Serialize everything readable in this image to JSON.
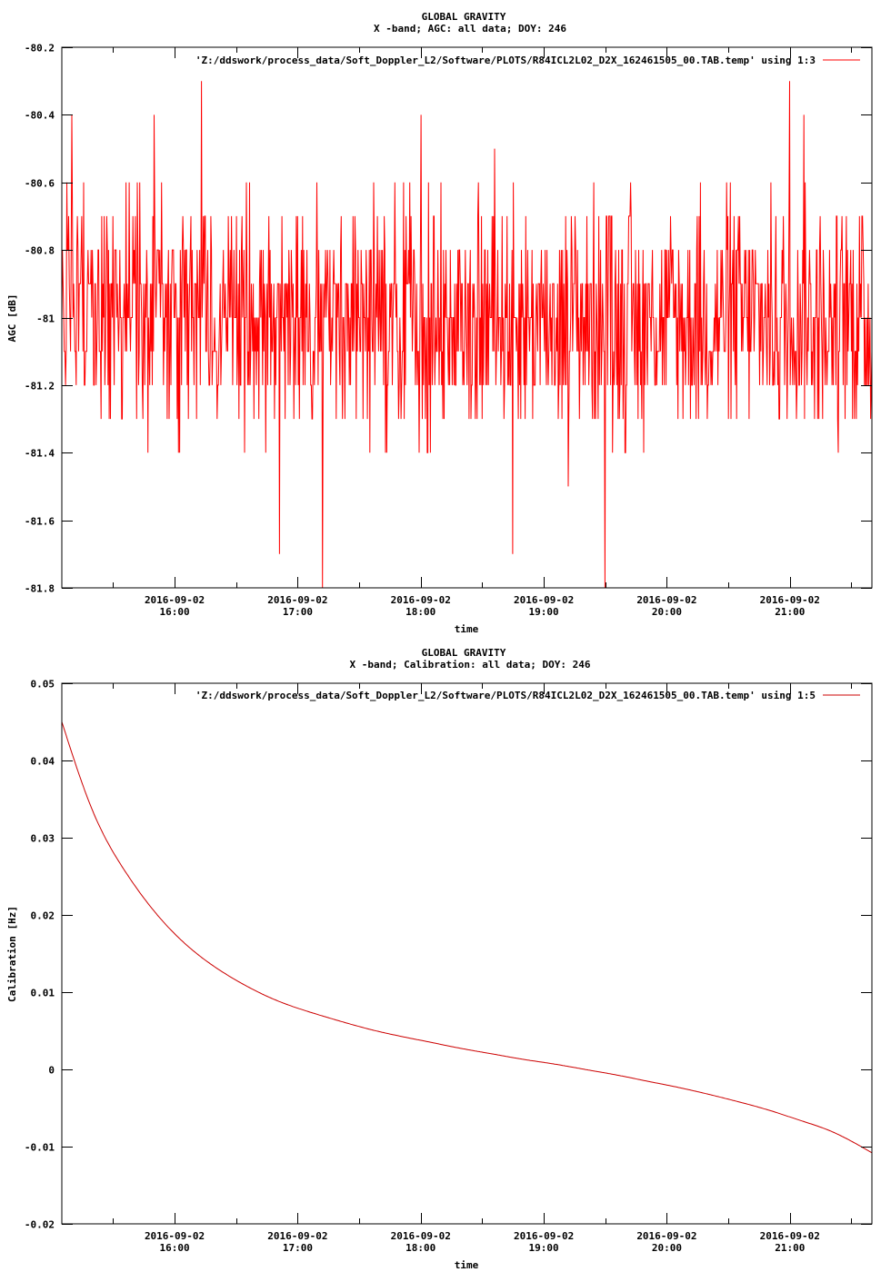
{
  "chart_data": [
    {
      "type": "line",
      "title": "GLOBAL GRAVITY",
      "subtitle": "X -band; AGC: all data; DOY: 246",
      "xlabel": "time",
      "ylabel": "AGC [dB]",
      "x_range": [
        "2016-09-02 15:05",
        "2016-09-02 21:40"
      ],
      "ylim": [
        -81.8,
        -80.2
      ],
      "y_ticks": [
        "-80.2",
        "-80.4",
        "-80.6",
        "-80.8",
        "-81",
        "-81.2",
        "-81.4",
        "-81.6",
        "-81.8"
      ],
      "y_tick_values": [
        -80.2,
        -80.4,
        -80.6,
        -80.8,
        -81.0,
        -81.2,
        -81.4,
        -81.6,
        -81.8
      ],
      "x_tick_values": [
        "16:00",
        "17:00",
        "18:00",
        "19:00",
        "20:00",
        "21:00"
      ],
      "x_tick_dates": [
        "2016-09-02",
        "2016-09-02",
        "2016-09-02",
        "2016-09-02",
        "2016-09-02",
        "2016-09-02"
      ],
      "grid": false,
      "legend_position": "top-right",
      "series": [
        {
          "name": "'Z:/ddswork/process_data/Soft_Doppler_L2/Software/PLOTS/R84ICL2L02_D2X_162461505_00.TAB.temp' using 1:3",
          "color": "#ff0000",
          "x_start_minutes": 905,
          "x_end_minutes": 1300,
          "summary": {
            "center": -81.0,
            "typical_min": -81.4,
            "typical_max": -80.6
          },
          "peaks": [
            {
              "x": "15:10",
              "y": -80.4
            },
            {
              "x": "15:50",
              "y": -80.4
            },
            {
              "x": "16:13",
              "y": -80.3
            },
            {
              "x": "18:00",
              "y": -80.4
            },
            {
              "x": "21:00",
              "y": -80.3
            },
            {
              "x": "21:07",
              "y": -80.4
            }
          ],
          "troughs": [
            {
              "x": "16:51",
              "y": -81.7
            },
            {
              "x": "17:12",
              "y": -81.8
            },
            {
              "x": "19:30",
              "y": -81.8
            },
            {
              "x": "18:45",
              "y": -81.7
            }
          ]
        }
      ]
    },
    {
      "type": "line",
      "title": "GLOBAL GRAVITY",
      "subtitle": "X -band; Calibration: all data; DOY: 246",
      "xlabel": "time",
      "ylabel": "Calibration [Hz]",
      "x_range": [
        "2016-09-02 15:05",
        "2016-09-02 21:40"
      ],
      "ylim": [
        -0.02,
        0.05
      ],
      "y_ticks": [
        "0.05",
        "0.04",
        "0.03",
        "0.02",
        "0.01",
        "0",
        "-0.01",
        "-0.02"
      ],
      "y_tick_values": [
        0.05,
        0.04,
        0.03,
        0.02,
        0.01,
        0.0,
        -0.01,
        -0.02
      ],
      "x_tick_values": [
        "16:00",
        "17:00",
        "18:00",
        "19:00",
        "20:00",
        "21:00"
      ],
      "x_tick_dates": [
        "2016-09-02",
        "2016-09-02",
        "2016-09-02",
        "2016-09-02",
        "2016-09-02",
        "2016-09-02"
      ],
      "grid": false,
      "legend_position": "top-right",
      "series": [
        {
          "name": "'Z:/ddswork/process_data/Soft_Doppler_L2/Software/PLOTS/R84ICL2L02_D2X_162461505_00.TAB.temp' using 1:5",
          "color": "#cc0000",
          "x": [
            "15:05",
            "15:20",
            "15:35",
            "15:50",
            "16:05",
            "16:20",
            "16:35",
            "16:50",
            "17:05",
            "17:20",
            "17:35",
            "17:50",
            "18:05",
            "18:20",
            "18:35",
            "18:50",
            "19:05",
            "19:20",
            "19:35",
            "19:50",
            "20:05",
            "20:20",
            "20:35",
            "20:50",
            "21:05",
            "21:20",
            "21:40"
          ],
          "y": [
            0.045,
            0.0335,
            0.026,
            0.0205,
            0.0163,
            0.0132,
            0.0108,
            0.0089,
            0.0075,
            0.0063,
            0.0052,
            0.0043,
            0.0035,
            0.0027,
            0.002,
            0.0013,
            0.0007,
            0.0,
            -0.0007,
            -0.0015,
            -0.0023,
            -0.0032,
            -0.0042,
            -0.0053,
            -0.0066,
            -0.008,
            -0.0108
          ]
        }
      ]
    }
  ]
}
